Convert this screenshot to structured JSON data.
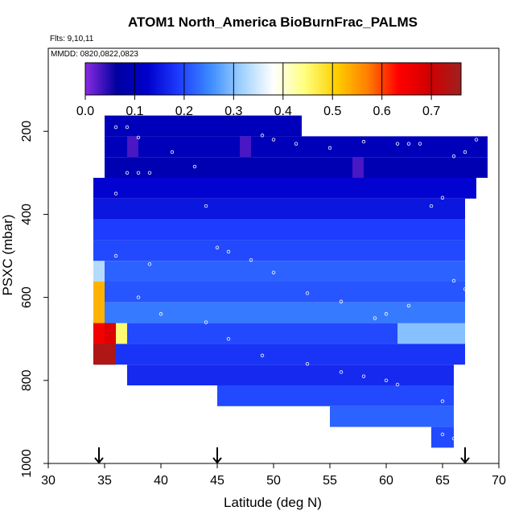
{
  "chart_data": {
    "type": "heatmap",
    "title": "ATOM1 North_America BioBurnFrac_PALMS",
    "subtitle_flights": "Flts: 9,10,11",
    "subtitle_dates": "MMDD: 0820,0822,0823",
    "xlabel": "Latitude (deg N)",
    "ylabel": "PSXC (mbar)",
    "xlim": [
      30,
      70
    ],
    "ylim": [
      1000,
      0
    ],
    "x_ticks": [
      "30",
      "35",
      "40",
      "45",
      "50",
      "55",
      "60",
      "65",
      "70"
    ],
    "y_ticks": [
      "200",
      "400",
      "600",
      "800",
      "1000"
    ],
    "colorbar": {
      "range": [
        0.0,
        0.76
      ],
      "ticks": [
        "0.0",
        "0.1",
        "0.2",
        "0.3",
        "0.4",
        "0.5",
        "0.6",
        "0.7"
      ],
      "colors": [
        "#8a2be2",
        "#0000a0",
        "#0000cd",
        "#1e3cff",
        "#3c8cff",
        "#a0d2ff",
        "#ffffff",
        "#ffff80",
        "#ffd000",
        "#ff8000",
        "#ff0000",
        "#d00000",
        "#a02020"
      ]
    },
    "arrow_markers_lat": [
      34.5,
      45,
      67
    ],
    "lat_bins": [
      32,
      33,
      34,
      35,
      36,
      37,
      38,
      39,
      40,
      41,
      42,
      43,
      44,
      45,
      46,
      47,
      48,
      49,
      50,
      51,
      52,
      53,
      54,
      55,
      56,
      57,
      58,
      59,
      60,
      61,
      62,
      63,
      64,
      65,
      66,
      67,
      68,
      69
    ],
    "pressure_bins": [
      175,
      200,
      225,
      250,
      275,
      300,
      325,
      350,
      375,
      400,
      425,
      450,
      475,
      500,
      525,
      550,
      575,
      600,
      625,
      650,
      675,
      700,
      725,
      750,
      775,
      800,
      825,
      850,
      875,
      900,
      925,
      950
    ],
    "bands": [
      {
        "p": [
          162,
          212
        ],
        "lat": [
          35,
          52.5
        ],
        "value": 0.1
      },
      {
        "p": [
          212,
          262
        ],
        "lat": [
          35,
          69
        ],
        "value": 0.1
      },
      {
        "p": [
          262,
          312
        ],
        "lat": [
          35,
          69
        ],
        "value": 0.09
      },
      {
        "p": [
          312,
          362
        ],
        "lat": [
          34,
          68
        ],
        "value": 0.13
      },
      {
        "p": [
          362,
          412
        ],
        "lat": [
          34,
          67
        ],
        "value": 0.15
      },
      {
        "p": [
          412,
          462
        ],
        "lat": [
          34,
          67
        ],
        "value": 0.19
      },
      {
        "p": [
          462,
          512
        ],
        "lat": [
          34,
          67
        ],
        "value": 0.2
      },
      {
        "p": [
          512,
          562
        ],
        "lat": [
          34,
          67
        ],
        "value": 0.22
      },
      {
        "p": [
          562,
          612
        ],
        "lat": [
          34,
          67
        ],
        "value": 0.21
      },
      {
        "p": [
          612,
          662
        ],
        "lat": [
          34,
          67
        ],
        "value": 0.24
      },
      {
        "p": [
          662,
          712
        ],
        "lat": [
          34,
          67
        ],
        "value": 0.2
      },
      {
        "p": [
          712,
          762
        ],
        "lat": [
          34,
          67
        ],
        "value": 0.18
      },
      {
        "p": [
          762,
          812
        ],
        "lat": [
          37,
          66
        ],
        "value": 0.17
      },
      {
        "p": [
          812,
          862
        ],
        "lat": [
          45,
          66
        ],
        "value": 0.2
      },
      {
        "p": [
          862,
          912
        ],
        "lat": [
          55,
          66
        ],
        "value": 0.22
      },
      {
        "p": [
          912,
          962
        ],
        "lat": [
          64,
          66
        ],
        "value": 0.2
      }
    ],
    "highlights": [
      {
        "lat": [
          34,
          35
        ],
        "p": [
          562,
          662
        ],
        "value": 0.53
      },
      {
        "lat": [
          34,
          35
        ],
        "p": [
          662,
          712
        ],
        "value": 0.65
      },
      {
        "lat": [
          35,
          36
        ],
        "p": [
          662,
          712
        ],
        "value": 0.68
      },
      {
        "lat": [
          34,
          36
        ],
        "p": [
          712,
          762
        ],
        "value": 0.74
      },
      {
        "lat": [
          34,
          35
        ],
        "p": [
          512,
          562
        ],
        "value": 0.33
      },
      {
        "lat": [
          36,
          37
        ],
        "p": [
          662,
          712
        ],
        "value": 0.45
      },
      {
        "lat": [
          57,
          58
        ],
        "p": [
          262,
          312
        ],
        "value": 0.03
      },
      {
        "lat": [
          37,
          38
        ],
        "p": [
          212,
          262
        ],
        "value": 0.03
      },
      {
        "lat": [
          47,
          48
        ],
        "p": [
          212,
          262
        ],
        "value": 0.03
      },
      {
        "lat": [
          61,
          67
        ],
        "p": [
          662,
          712
        ],
        "value": 0.3
      }
    ]
  }
}
